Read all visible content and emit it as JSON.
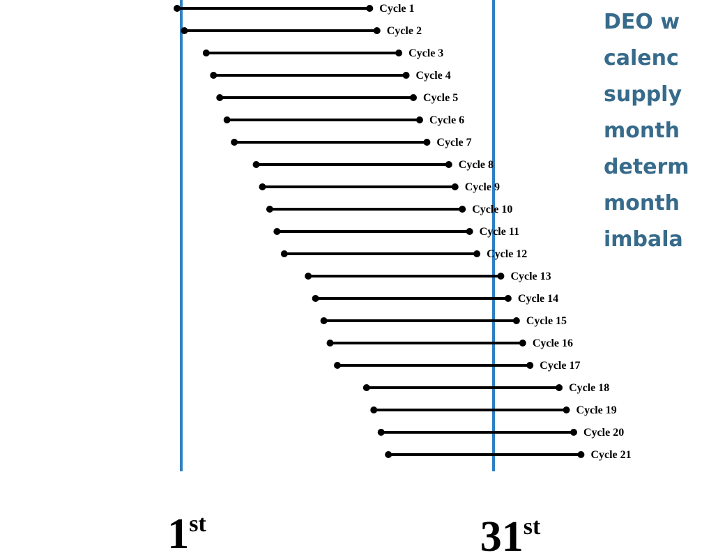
{
  "side_text": {
    "lines": [
      "DEO w",
      "calenc",
      "supply",
      "month",
      "determ",
      "month",
      "imbala"
    ],
    "color": "#376b8b"
  },
  "markers": {
    "first": {
      "number": "1",
      "suffix": "st"
    },
    "last": {
      "number": "31",
      "suffix": "st"
    },
    "line_color": "#2f7fc1"
  },
  "cycles": [
    {
      "label": "Cycle 1",
      "start_day": 0.6,
      "end_day": 19.1
    },
    {
      "label": "Cycle 2",
      "start_day": 1.3,
      "end_day": 19.8
    },
    {
      "label": "Cycle 3",
      "start_day": 3.4,
      "end_day": 21.9
    },
    {
      "label": "Cycle 4",
      "start_day": 4.1,
      "end_day": 22.6
    },
    {
      "label": "Cycle 5",
      "start_day": 4.7,
      "end_day": 23.3
    },
    {
      "label": "Cycle 6",
      "start_day": 5.4,
      "end_day": 23.9
    },
    {
      "label": "Cycle 7",
      "start_day": 6.1,
      "end_day": 24.6
    },
    {
      "label": "Cycle 8",
      "start_day": 8.2,
      "end_day": 26.7
    },
    {
      "label": "Cycle 9",
      "start_day": 8.8,
      "end_day": 27.3
    },
    {
      "label": "Cycle 10",
      "start_day": 9.5,
      "end_day": 28.0
    },
    {
      "label": "Cycle 11",
      "start_day": 10.2,
      "end_day": 28.7
    },
    {
      "label": "Cycle 12",
      "start_day": 10.9,
      "end_day": 29.4
    },
    {
      "label": "Cycle 13",
      "start_day": 13.2,
      "end_day": 31.7
    },
    {
      "label": "Cycle 14",
      "start_day": 13.9,
      "end_day": 32.4
    },
    {
      "label": "Cycle 15",
      "start_day": 14.7,
      "end_day": 33.2
    },
    {
      "label": "Cycle 16",
      "start_day": 15.3,
      "end_day": 33.8
    },
    {
      "label": "Cycle 17",
      "start_day": 16.0,
      "end_day": 34.5
    },
    {
      "label": "Cycle 18",
      "start_day": 18.8,
      "end_day": 37.3
    },
    {
      "label": "Cycle 19",
      "start_day": 19.5,
      "end_day": 38.0
    },
    {
      "label": "Cycle 20",
      "start_day": 20.2,
      "end_day": 38.7
    },
    {
      "label": "Cycle 21",
      "start_day": 20.9,
      "end_day": 39.4
    }
  ]
}
